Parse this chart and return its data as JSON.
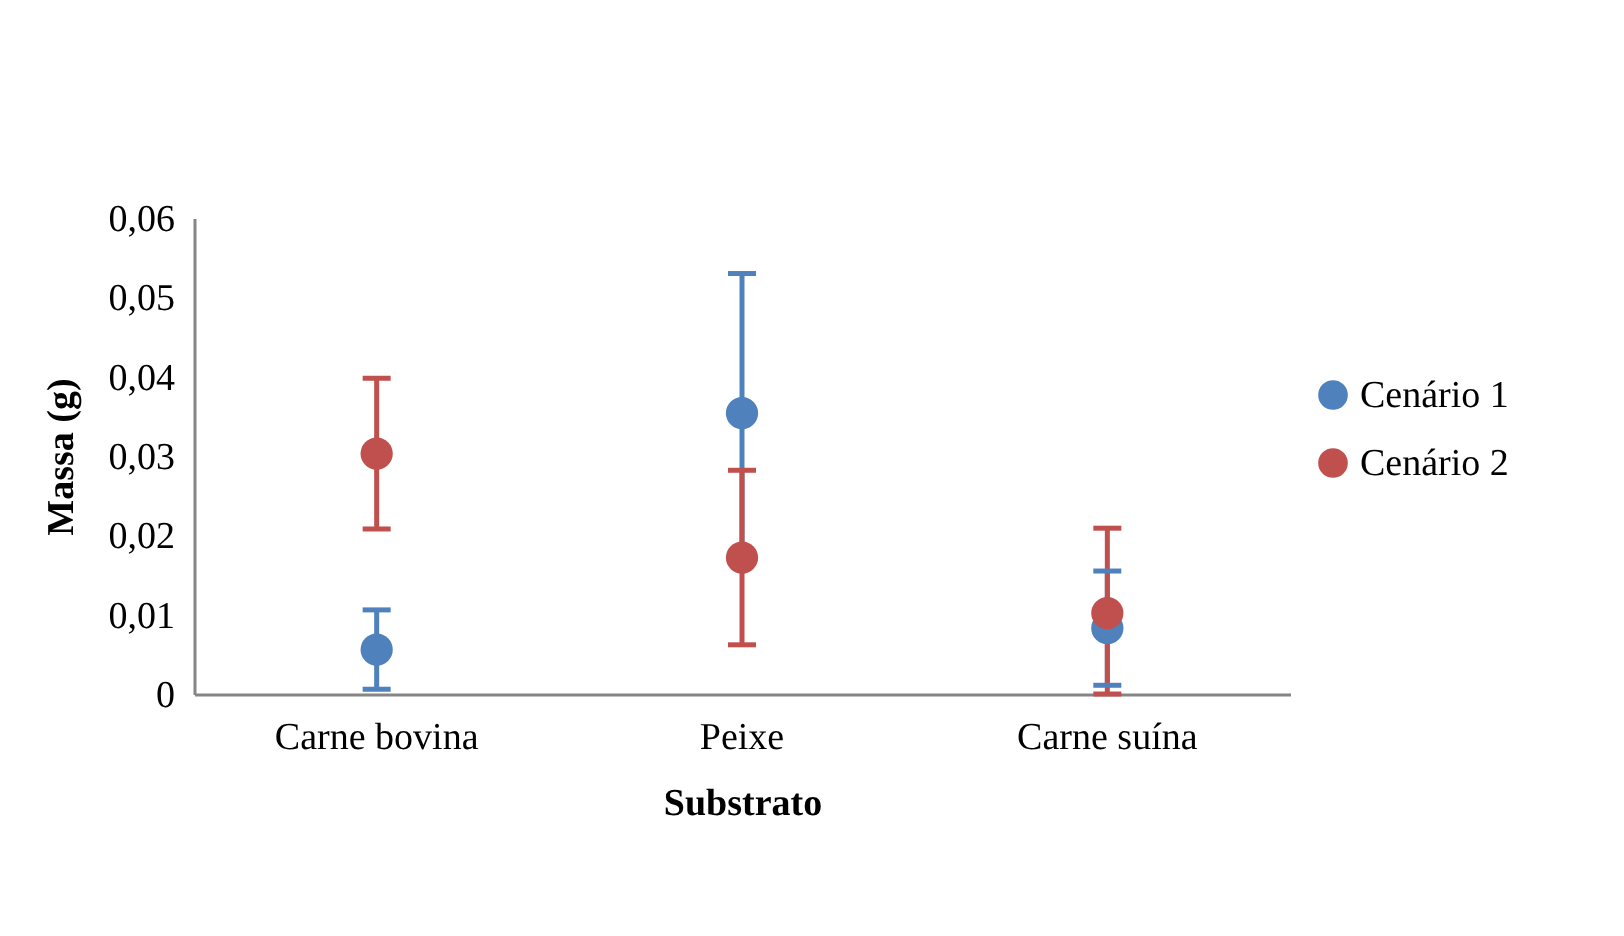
{
  "chart_data": {
    "type": "scatter",
    "xlabel": "Substrato",
    "ylabel": "Massa (g)",
    "categories": [
      "Carne bovina",
      "Peixe",
      "Carne suína"
    ],
    "series": [
      {
        "name": "Cenário 1",
        "color": "#4f81bd",
        "values": [
          0.0056,
          0.0354,
          0.0083
        ],
        "errors": [
          0.005,
          0.0176,
          0.0072
        ]
      },
      {
        "name": "Cenário 2",
        "color": "#c0504d",
        "values": [
          0.0303,
          0.0172,
          0.0102
        ],
        "errors": [
          0.0095,
          0.011,
          [
            0,
            0.0209
          ]
        ]
      }
    ],
    "ylim": [
      0,
      0.06
    ],
    "yticks": [
      0,
      {
        "value": 0.01,
        "label": "0,01"
      },
      {
        "value": 0.02,
        "label": "0,02"
      },
      {
        "value": 0.03,
        "label": "0,03"
      },
      {
        "value": 0.04,
        "label": "0,04"
      },
      {
        "value": 0.05,
        "label": "0,05"
      },
      {
        "value": 0.06,
        "label": "0,06"
      }
    ],
    "grid": false,
    "legend": "right",
    "marker": "circle"
  }
}
